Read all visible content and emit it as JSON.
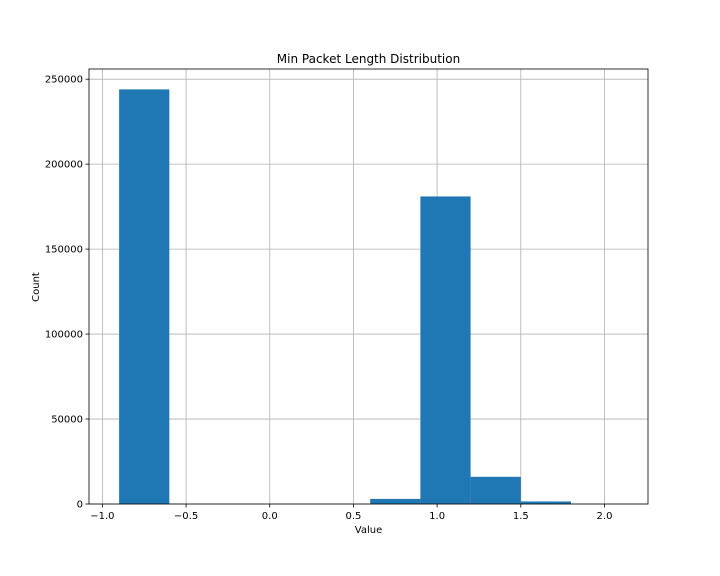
{
  "chart_data": {
    "type": "bar",
    "title": "Min Packet Length Distribution",
    "xlabel": "Value",
    "ylabel": "Count",
    "xlim": [
      -1.08,
      2.26
    ],
    "ylim": [
      0,
      256000
    ],
    "grid": true,
    "bar_color": "#1f77b4",
    "bin_edges": [
      -0.9,
      -0.6,
      -0.3,
      0.0,
      0.3,
      0.6,
      0.9,
      1.2,
      1.5,
      1.8,
      2.1
    ],
    "counts": [
      244000,
      0,
      0,
      0,
      0,
      3000,
      181000,
      16000,
      1500,
      0
    ],
    "x_ticks": [
      -1.0,
      -0.5,
      0.0,
      0.5,
      1.0,
      1.5,
      2.0
    ],
    "x_tick_labels": [
      "−1.0",
      "−0.5",
      "0.0",
      "0.5",
      "1.0",
      "1.5",
      "2.0"
    ],
    "y_ticks": [
      0,
      50000,
      100000,
      150000,
      200000,
      250000
    ],
    "y_tick_labels": [
      "0",
      "50000",
      "100000",
      "150000",
      "200000",
      "250000"
    ]
  }
}
